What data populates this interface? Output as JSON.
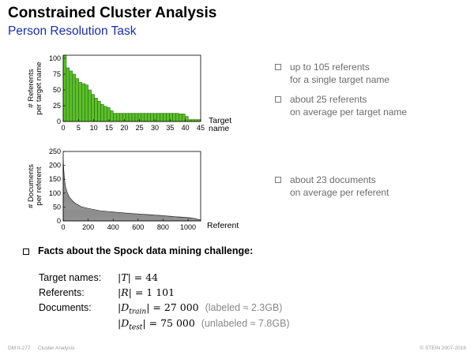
{
  "header": {
    "title": "Constrained Cluster Analysis",
    "subtitle": "Person Resolution Task"
  },
  "chart_data": [
    {
      "type": "bar",
      "ylabel": "# Referents per target name",
      "xlabel": "Target name",
      "xlim": [
        0,
        45
      ],
      "ylim": [
        0,
        105
      ],
      "xticks": [
        "0",
        "5",
        "10",
        "15",
        "20",
        "25",
        "30",
        "35",
        "40",
        "45"
      ],
      "yticks": [
        "0",
        "25",
        "50",
        "75",
        "100"
      ],
      "bar_color": "#5cbf2a",
      "values": [
        105,
        85,
        80,
        75,
        68,
        62,
        60,
        58,
        50,
        43,
        37,
        32,
        27,
        24,
        22,
        17,
        13,
        13,
        13,
        13,
        13,
        13,
        13,
        13,
        13,
        13,
        13,
        13,
        13,
        13,
        13,
        13,
        13,
        13,
        13,
        13,
        13,
        12,
        12,
        8,
        3,
        3,
        3,
        3
      ]
    },
    {
      "type": "area",
      "ylabel": "# Documents per referent",
      "xlabel": "Referent",
      "xlim": [
        0,
        1101
      ],
      "ylim": [
        0,
        250
      ],
      "xticks": [
        "0",
        "200",
        "400",
        "600",
        "800",
        "1000"
      ],
      "yticks": [
        "0",
        "50",
        "100",
        "150",
        "200",
        "250"
      ],
      "x": [
        0,
        5,
        10,
        20,
        30,
        50,
        75,
        100,
        150,
        200,
        300,
        400,
        500,
        600,
        700,
        800,
        900,
        1000,
        1050,
        1101
      ],
      "values": [
        220,
        180,
        150,
        120,
        105,
        85,
        72,
        62,
        50,
        45,
        36,
        32,
        28,
        25,
        22,
        19,
        15,
        12,
        9,
        3
      ]
    }
  ],
  "bullets": [
    {
      "line1": "up to 105 referents",
      "line2": "for a single target name"
    },
    {
      "line1": "about 25 referents",
      "line2": "on average per target name"
    },
    {
      "line1": "about 23 documents",
      "line2": "on average per referent"
    }
  ],
  "facts": {
    "heading": "Facts about the Spock data mining challenge:",
    "rows": [
      {
        "label": "Target names:",
        "var": "T",
        "value": "44",
        "note": ""
      },
      {
        "label": "Referents:",
        "var": "R",
        "value": "1 101",
        "note": ""
      },
      {
        "label": "Documents:",
        "var": "D",
        "sub": "train",
        "value": "27 000",
        "note": "(labeled ≈ 2.3GB)"
      },
      {
        "label": "",
        "var": "D",
        "sub": "test",
        "value": "75 000",
        "note": "(unlabeled ≈ 7.8GB)"
      }
    ]
  },
  "footer": {
    "left_code": "DM II-277",
    "left_topic": "Cluster Analysis",
    "right": "© STEIN 2007-2018"
  }
}
